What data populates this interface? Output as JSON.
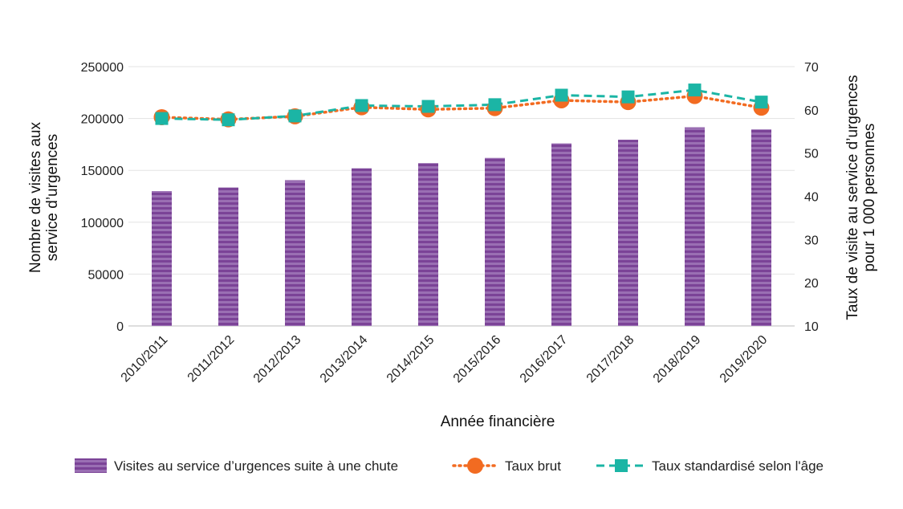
{
  "chart_data": {
    "type": "bar",
    "categories": [
      "2010/2011",
      "2011/2012",
      "2012/2013",
      "2013/2014",
      "2014/2015",
      "2015/2016",
      "2016/2017",
      "2017/2018",
      "2018/2019",
      "2019/2020"
    ],
    "series": [
      {
        "name": "Visites au service d’urgences suite à une chute",
        "type": "bar",
        "axis": "left",
        "color": "#7B4397",
        "values": [
          130000,
          133500,
          140500,
          152000,
          157000,
          162000,
          176000,
          179500,
          191500,
          189500
        ]
      },
      {
        "name": "Taux brut",
        "type": "line",
        "axis": "right",
        "color": "#F26B21",
        "line_style": "dotted",
        "marker": "circle",
        "values": [
          58.3,
          57.8,
          58.5,
          60.6,
          60.1,
          60.4,
          62.2,
          61.8,
          63.2,
          60.5
        ]
      },
      {
        "name": "Taux standardisé selon l'âge",
        "type": "line",
        "axis": "right",
        "color": "#1BB5A5",
        "line_style": "dashed",
        "marker": "square",
        "values": [
          58.0,
          57.7,
          58.6,
          61.0,
          60.8,
          61.2,
          63.4,
          63.0,
          64.6,
          61.8
        ]
      }
    ],
    "xlabel": "Année financière",
    "ylabel": "Nombre de visites aux service d’urgences",
    "ylabel_lines": [
      "Nombre de visites aux",
      "service d’urgences"
    ],
    "y2label": "Taux de visite au service d’urgences pour 1 000 personnes",
    "y2label_lines": [
      "Taux de visite au service d’urgences",
      "pour 1 000 personnes"
    ],
    "ylim": [
      0,
      250000
    ],
    "y_ticks": [
      0,
      50000,
      100000,
      150000,
      200000,
      250000
    ],
    "y_tick_labels": [
      "0",
      "50000",
      "100000",
      "150000",
      "200000",
      "250000"
    ],
    "y2lim": [
      10,
      70
    ],
    "y2_ticks": [
      10,
      20,
      30,
      40,
      50,
      60,
      70
    ],
    "y2_tick_labels": [
      "10",
      "20",
      "30",
      "40",
      "50",
      "60",
      "70"
    ],
    "grid": true,
    "legend_position": "bottom"
  }
}
